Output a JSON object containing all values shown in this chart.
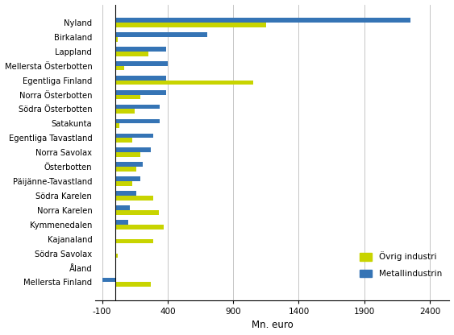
{
  "regions": [
    "Nyland",
    "Birkaland",
    "Lappland",
    "Mellersta Österbotten",
    "Egentliga Finland",
    "Norra Österbotten",
    "Södra Österbotten",
    "Satakunta",
    "Egentliga Tavastland",
    "Norra Savolax",
    "Österbotten",
    "Päijänne-Tavastland",
    "Södra Karelen",
    "Norra Karelen",
    "Kymmenedalen",
    "Kajanaland",
    "Södra Savolax",
    "Åland",
    "Mellersta Finland"
  ],
  "ovrig_industri": [
    1150,
    20,
    250,
    70,
    1050,
    190,
    150,
    30,
    130,
    190,
    160,
    130,
    290,
    330,
    370,
    290,
    20,
    10,
    270
  ],
  "metallindustrin": [
    2250,
    700,
    390,
    400,
    390,
    390,
    340,
    340,
    290,
    270,
    210,
    190,
    160,
    110,
    100,
    0,
    10,
    10,
    -100
  ],
  "color_ovrig": "#c8d400",
  "color_metall": "#3574b5",
  "xlabel": "Mn. euro",
  "legend_ovrig": "Övrig industri",
  "legend_metall": "Metallindustrin",
  "xlim": [
    -150,
    2550
  ],
  "xticks": [
    -100,
    400,
    900,
    1400,
    1900,
    2400
  ],
  "bar_height": 0.32,
  "background_color": "#ffffff",
  "grid_color": "#bbbbbb"
}
